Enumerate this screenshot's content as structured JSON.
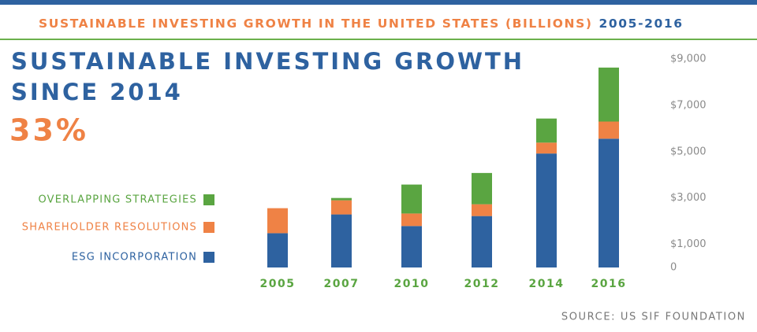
{
  "chart_data": {
    "type": "stacked-bar",
    "title": "SUSTAINABLE INVESTING GROWTH IN THE UNITED STATES (BILLIONS)",
    "title_years": "2005-2016",
    "headline": [
      "SUSTAINABLE INVESTING GROWTH",
      "SINCE 2014"
    ],
    "headline_value": "33%",
    "source": "SOURCE: US SIF FOUNDATION",
    "categories": [
      "2005",
      "2007",
      "2010",
      "2012",
      "2014",
      "2016"
    ],
    "series": [
      {
        "name": "ESG INCORPORATION",
        "color": "#2e62a0",
        "values": [
          1480,
          2290,
          1790,
          2220,
          4920,
          5560
        ]
      },
      {
        "name": "SHAREHOLDER RESOLUTIONS",
        "color": "#ef8245",
        "values": [
          1080,
          610,
          540,
          510,
          470,
          740
        ]
      },
      {
        "name": "OVERLAPPING STRATEGIES",
        "color": "#5aa541",
        "values": [
          0,
          100,
          1250,
          1350,
          1040,
          2330
        ]
      }
    ],
    "ylim": [
      0,
      9000
    ],
    "yticks": [
      0,
      {
        "value": 1000,
        "label": "$1,000"
      },
      {
        "value": 3000,
        "label": "$3,000"
      },
      {
        "value": 5000,
        "label": "$5,000"
      },
      {
        "value": 7000,
        "label": "$7,000"
      },
      {
        "value": 9000,
        "label": "$9,000"
      }
    ],
    "grid": false
  }
}
